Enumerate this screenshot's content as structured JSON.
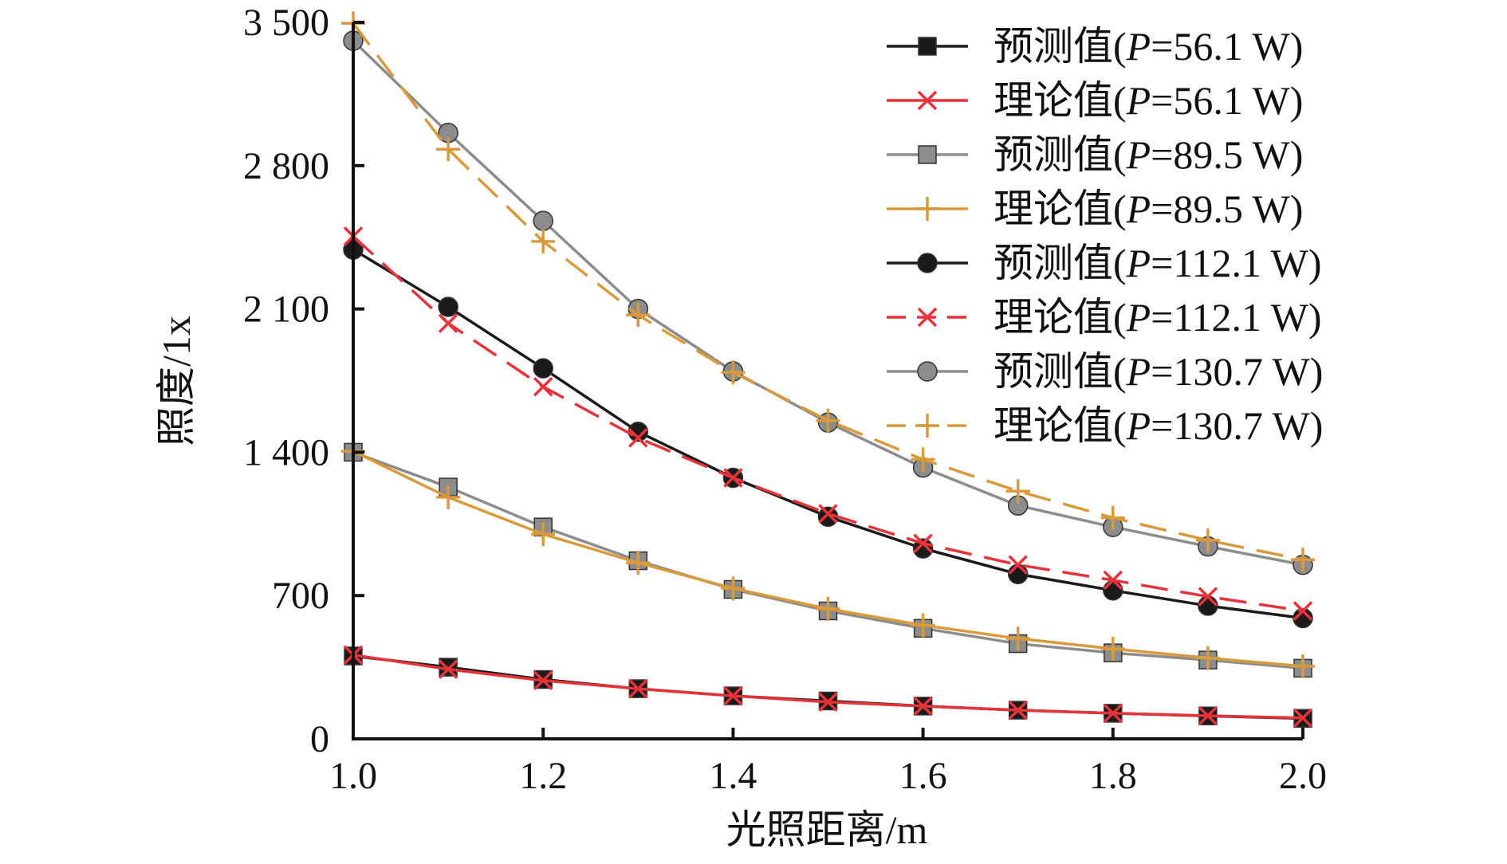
{
  "chart_data": {
    "type": "line",
    "xlabel": "光照距离/m",
    "ylabel": "照度/1x",
    "xlim": [
      1.0,
      2.0
    ],
    "ylim": [
      0,
      3500
    ],
    "xticks": [
      "1.0",
      "1.2",
      "1.4",
      "1.6",
      "1.8",
      "2.0"
    ],
    "yticks": [
      "0",
      "700",
      "1 400",
      "2 100",
      "2 800",
      "3 500"
    ],
    "xtick_values": [
      1.0,
      1.2,
      1.4,
      1.6,
      1.8,
      2.0
    ],
    "ytick_values": [
      0,
      700,
      1400,
      2100,
      2800,
      3500
    ],
    "grid": false,
    "legend_position": "top-right",
    "x": [
      1.0,
      1.1,
      1.2,
      1.3,
      1.4,
      1.5,
      1.6,
      1.7,
      1.8,
      1.9,
      2.0
    ],
    "series": [
      {
        "name": "预测值(P=56.1 W)",
        "lead": "预测值(",
        "pvar": "P",
        "tail": "=56.1 W)",
        "color": "#1a1a1a",
        "marker": "square",
        "dash": false,
        "values": [
          405,
          350,
          290,
          245,
          210,
          185,
          160,
          140,
          125,
          112,
          100
        ]
      },
      {
        "name": "理论值(P=56.1 W)",
        "lead": "理论值(",
        "pvar": "P",
        "tail": "=56.1 W)",
        "color": "#e8323a",
        "marker": "x",
        "dash": false,
        "values": [
          410,
          340,
          285,
          245,
          210,
          180,
          160,
          140,
          125,
          113,
          102
        ]
      },
      {
        "name": "预测值(P=89.5 W)",
        "lead": "预测值(",
        "pvar": "P",
        "tail": "=89.5 W)",
        "color": "#8c8c8c",
        "marker": "square",
        "dash": false,
        "values": [
          1400,
          1230,
          1035,
          870,
          730,
          625,
          540,
          465,
          420,
          385,
          345
        ]
      },
      {
        "name": "理论值(P=89.5 W)",
        "lead": "理论值(",
        "pvar": "P",
        "tail": "=89.5 W)",
        "color": "#d99a3c",
        "marker": "plus",
        "dash": false,
        "values": [
          1405,
          1180,
          1000,
          860,
          735,
          635,
          555,
          490,
          440,
          395,
          355
        ]
      },
      {
        "name": "预测值(P=112.1 W)",
        "lead": "预测值(",
        "pvar": "P",
        "tail": "=112.1 W)",
        "color": "#1a1a1a",
        "marker": "circle",
        "dash": false,
        "values": [
          2390,
          2110,
          1810,
          1500,
          1275,
          1085,
          930,
          805,
          725,
          650,
          590
        ]
      },
      {
        "name": "理论值(P=112.1 W)",
        "lead": "理论值(",
        "pvar": "P",
        "tail": "=112.1 W)",
        "color": "#e8323a",
        "marker": "x",
        "dash": true,
        "values": [
          2455,
          2030,
          1720,
          1470,
          1275,
          1100,
          955,
          850,
          775,
          695,
          625
        ]
      },
      {
        "name": "预测值(P=130.7 W)",
        "lead": "预测值(",
        "pvar": "P",
        "tail": "=130.7 W)",
        "color": "#8c8c8c",
        "marker": "circle",
        "dash": false,
        "values": [
          3410,
          2960,
          2530,
          2100,
          1795,
          1545,
          1325,
          1140,
          1035,
          940,
          850
        ]
      },
      {
        "name": "理论值(P=130.7 W)",
        "lead": "理论值(",
        "pvar": "P",
        "tail": "=130.7 W)",
        "color": "#d99a3c",
        "marker": "plus",
        "dash": true,
        "values": [
          3495,
          2880,
          2430,
          2070,
          1790,
          1555,
          1365,
          1210,
          1080,
          970,
          875
        ]
      }
    ]
  }
}
